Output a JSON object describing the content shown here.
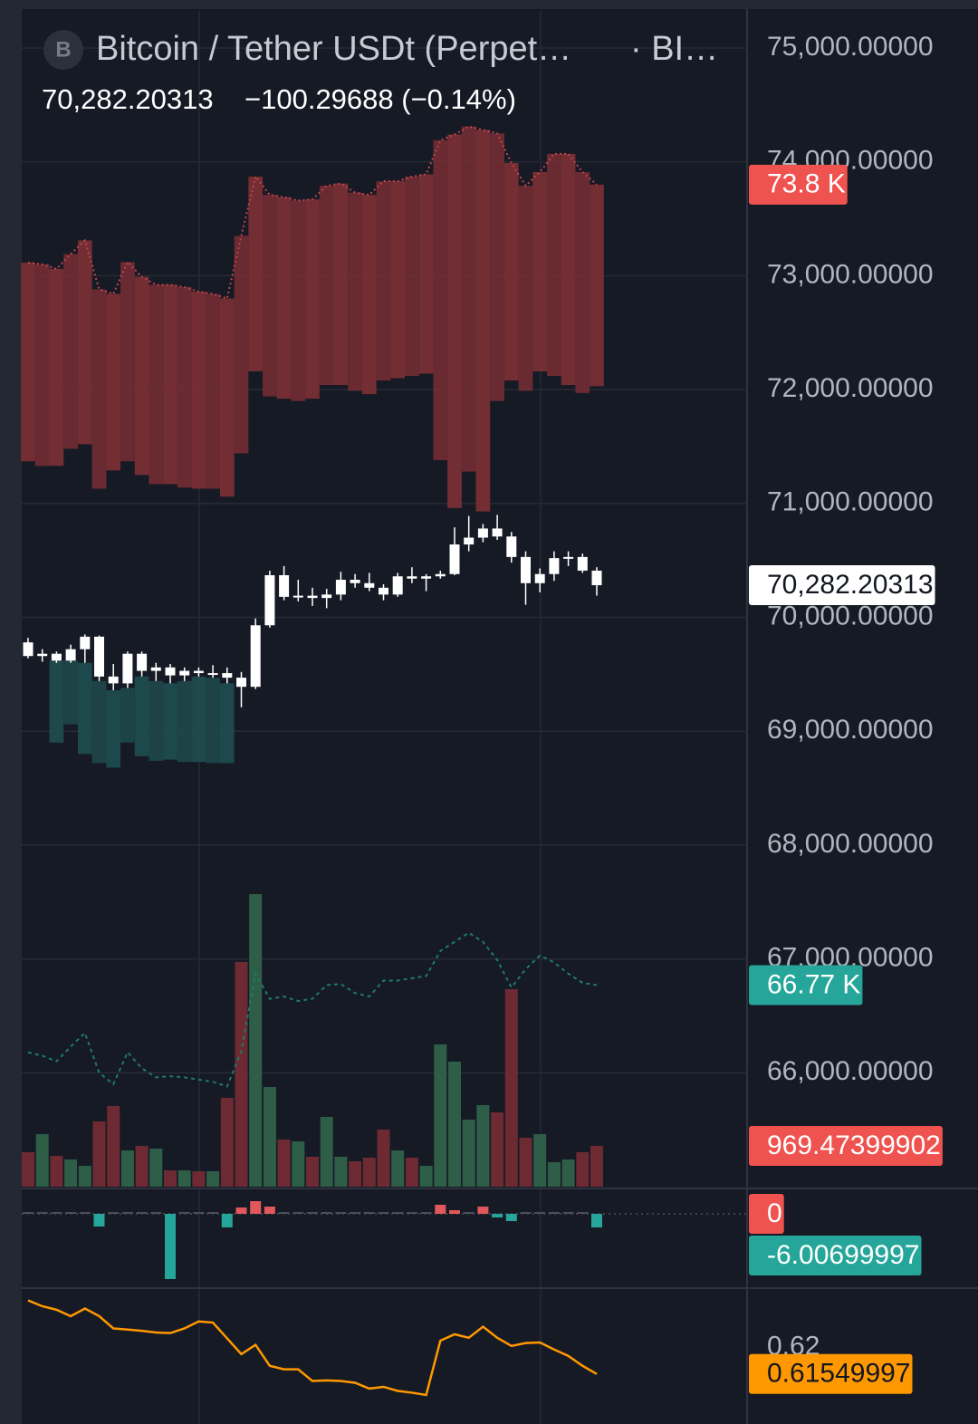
{
  "header": {
    "icon": "B",
    "title": "Bitcoin / Tether USDt (Perpet…",
    "exchange": "· BI…",
    "price": "70,282.20313",
    "change": "−100.29688 (−0.14%)"
  },
  "chart_data": [
    {
      "type": "candlestick",
      "ylim": [
        65000,
        75326
      ],
      "yticks": [
        {
          "value": 66000,
          "label": "66,000.00000"
        },
        {
          "value": 67000,
          "label": "67,000.00000"
        },
        {
          "value": 68000,
          "label": "68,000.00000"
        },
        {
          "value": 69000,
          "label": "69,000.00000"
        },
        {
          "value": 70000,
          "label": "70,000.00000"
        },
        {
          "value": 71000,
          "label": "71,000.00000"
        },
        {
          "value": 72000,
          "label": "72,000.00000"
        },
        {
          "value": 73000,
          "label": "73,000.00000"
        },
        {
          "value": 74000,
          "label": "74,000.00000"
        },
        {
          "value": 75000,
          "label": "75,000.00000"
        }
      ],
      "grid": true,
      "color": "#ffffff",
      "open": [
        69780,
        69660,
        69680,
        69620,
        69720,
        69830,
        69480,
        69420,
        69680,
        69530,
        69560,
        69490,
        69530,
        69510,
        69510,
        69470,
        69390,
        69930,
        70370,
        70180,
        70190,
        70170,
        70200,
        70330,
        70300,
        70260,
        70200,
        70360,
        70340,
        70360,
        70380,
        70640,
        70700,
        70780,
        70710,
        70530,
        70300,
        70380,
        70520,
        70530,
        70410
      ],
      "high": [
        69820,
        69720,
        69700,
        69760,
        69850,
        69840,
        69590,
        69700,
        69700,
        69600,
        69590,
        69560,
        69560,
        69580,
        69560,
        69520,
        69990,
        70410,
        70450,
        70330,
        70260,
        70250,
        70400,
        70380,
        70390,
        70290,
        70390,
        70440,
        70380,
        70410,
        70790,
        70890,
        70820,
        70900,
        70750,
        70580,
        70430,
        70580,
        70580,
        70560,
        70440
      ],
      "low": [
        69640,
        69610,
        69600,
        69600,
        69600,
        69440,
        69360,
        69380,
        69480,
        69440,
        69420,
        69440,
        69480,
        69470,
        69420,
        69210,
        69370,
        69910,
        70150,
        70140,
        70100,
        70080,
        70150,
        70260,
        70230,
        70150,
        70180,
        70300,
        70230,
        70340,
        70370,
        70580,
        70660,
        70680,
        70480,
        70110,
        70220,
        70320,
        70450,
        70390,
        70190
      ],
      "close": [
        69660,
        69680,
        69620,
        69720,
        69830,
        69480,
        69420,
        69680,
        69530,
        69560,
        69490,
        69530,
        69510,
        69510,
        69470,
        69390,
        69930,
        70370,
        70180,
        70190,
        70170,
        70200,
        70330,
        70300,
        70260,
        70200,
        70360,
        70340,
        70360,
        70380,
        70640,
        70700,
        70780,
        70710,
        70530,
        70300,
        70380,
        70520,
        70530,
        70410,
        70282.20313
      ],
      "bands": [
        {
          "color": "#7b3034",
          "line_color": "#c0444c",
          "last_label": "73.8 K",
          "upper": [
            73115,
            73100,
            73060,
            73190,
            73310,
            72880,
            72840,
            73120,
            72990,
            72920,
            72920,
            72900,
            72860,
            72840,
            72800,
            73350,
            73870,
            73710,
            73690,
            73660,
            73670,
            73790,
            73810,
            73730,
            73710,
            73830,
            73830,
            73870,
            73890,
            74190,
            74240,
            74310,
            74280,
            74250,
            73990,
            73790,
            73910,
            74070,
            74070,
            73910,
            73800
          ],
          "lower": [
            71370,
            71330,
            71330,
            71480,
            71520,
            71130,
            71290,
            71370,
            71250,
            71170,
            71170,
            71140,
            71130,
            71130,
            71060,
            71440,
            72160,
            71940,
            71920,
            71900,
            71920,
            72040,
            72040,
            71990,
            71960,
            72080,
            72100,
            72120,
            72140,
            71380,
            70960,
            71280,
            70930,
            71900,
            72080,
            71990,
            72160,
            72120,
            72040,
            71970,
            72030
          ]
        },
        {
          "color": "#1f4d4f",
          "upper": [
            null,
            null,
            69620,
            69620,
            69600,
            69440,
            69360,
            69380,
            69480,
            69440,
            69420,
            69440,
            69480,
            69470,
            69420,
            null,
            null,
            null,
            null,
            null,
            null,
            null,
            null,
            null,
            null,
            null,
            null,
            null,
            null,
            null,
            null,
            null,
            null,
            null,
            null,
            null,
            null,
            null,
            null,
            null,
            null
          ],
          "lower": [
            null,
            null,
            68900,
            69060,
            68800,
            68720,
            68680,
            68900,
            68780,
            68740,
            68750,
            68730,
            68730,
            68720,
            68720,
            null,
            null,
            null,
            null,
            null,
            null,
            null,
            null,
            null,
            null,
            null,
            null,
            null,
            null,
            null,
            null,
            null,
            null,
            null,
            null,
            null,
            null,
            null,
            null,
            null,
            null
          ]
        }
      ],
      "line": {
        "color": "#1f7a6a",
        "last_label": "66.77 K",
        "values": [
          66180,
          66150,
          66100,
          66230,
          66350,
          66000,
          65900,
          66180,
          66040,
          65960,
          65970,
          65960,
          65940,
          65920,
          65880,
          66190,
          66870,
          66650,
          66670,
          66630,
          66650,
          66770,
          66780,
          66700,
          66670,
          66810,
          66810,
          66830,
          66850,
          67070,
          67150,
          67230,
          67150,
          66990,
          66750,
          66910,
          67030,
          66970,
          66870,
          66790,
          66770
        ]
      },
      "volume": {
        "ylim": [
          0,
          27960
        ],
        "up_color": "#2e5e48",
        "down_color": "#6e2a33",
        "values": [
          819,
          1249,
          732,
          646,
          495,
          1551,
          1917,
          862,
          969,
          905,
          388,
          388,
          366,
          366,
          2111,
          5342,
          6957,
          2369,
          1120,
          1077,
          711,
          1659,
          711,
          603,
          689,
          1357,
          862,
          689,
          495,
          3382,
          2973,
          1594,
          1939,
          1766,
          4696,
          1163,
          1249,
          582,
          646,
          819,
          969.47399902
        ]
      }
    },
    {
      "type": "bar",
      "ylim": [
        -32.8,
        10
      ],
      "signal": 0,
      "up_color": "#e0585c",
      "down_color": "#26a69a",
      "values": [
        0,
        0,
        0,
        0,
        0,
        -5.6,
        0,
        0,
        0,
        0,
        -28.8,
        0,
        0,
        0,
        -6,
        2.8,
        5.6,
        3.2,
        0,
        0,
        0,
        0,
        0,
        0,
        0,
        0,
        0,
        0,
        0,
        4,
        1.6,
        0,
        3.2,
        -1.6,
        -3.2,
        0,
        0,
        0,
        0,
        0,
        -6.00699997
      ]
    },
    {
      "type": "line",
      "ylim": [
        0.6088,
        0.6302
      ],
      "yticks": [
        0.62
      ],
      "color": "#ff9800",
      "values": [
        0.6281,
        0.6271,
        0.6265,
        0.6254,
        0.6267,
        0.6254,
        0.6233,
        0.6231,
        0.6229,
        0.6226,
        0.6225,
        0.6233,
        0.6245,
        0.6243,
        0.6216,
        0.6189,
        0.6205,
        0.6169,
        0.6163,
        0.6163,
        0.6143,
        0.6144,
        0.6143,
        0.614,
        0.613,
        0.6133,
        0.6126,
        0.6123,
        0.6119,
        0.6212,
        0.6223,
        0.6217,
        0.6236,
        0.6217,
        0.6203,
        0.6208,
        0.6209,
        0.6197,
        0.6186,
        0.6169,
        0.61549997
      ]
    }
  ]
}
